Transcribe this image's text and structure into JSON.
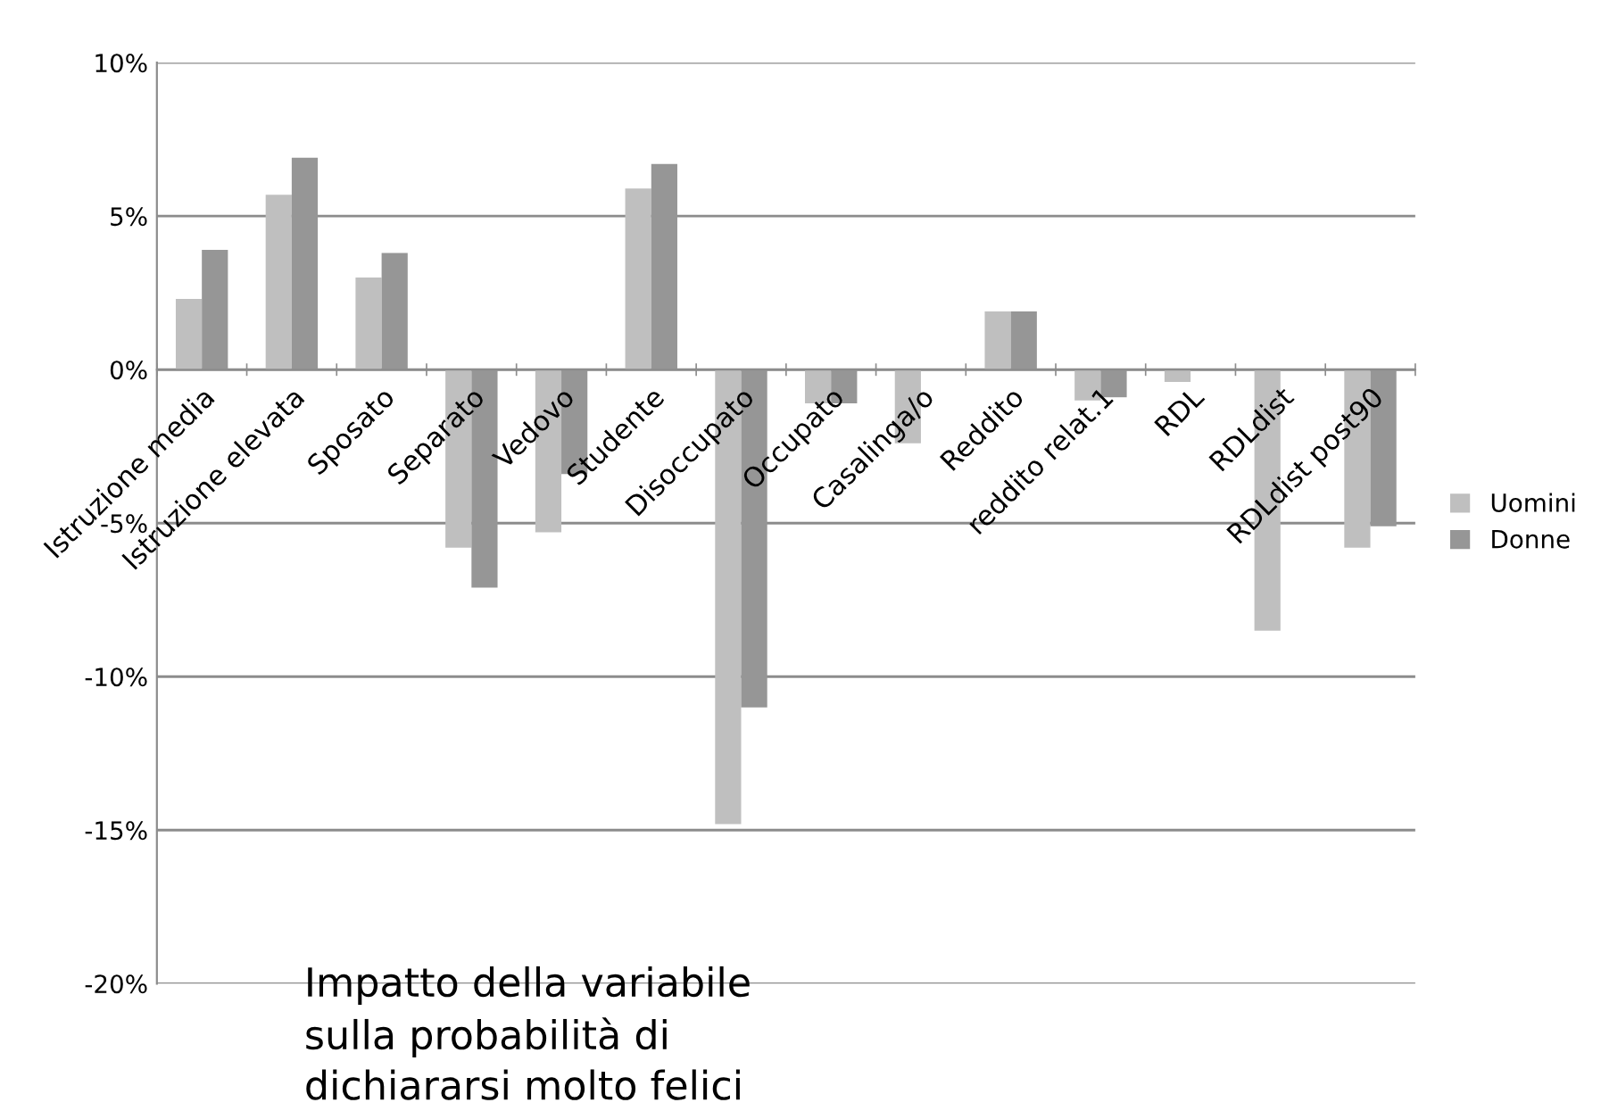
{
  "chart_data": {
    "type": "bar",
    "categories": [
      "Istruzione media",
      "Istruzione elevata",
      "Sposato",
      "Separato",
      "Vedovo",
      "Studente",
      "Disoccupato",
      "Occupato",
      "Casalinga/o",
      "Reddito",
      "reddito relat.1",
      "RDL",
      "RDLdist",
      "RDLdist post90"
    ],
    "series": [
      {
        "name": "Uomini",
        "color": "#bfbfbf",
        "values": [
          2.3,
          5.7,
          3.0,
          -5.8,
          -5.3,
          5.9,
          -14.8,
          -1.1,
          -2.4,
          1.9,
          -1.0,
          -0.4,
          -8.5,
          -5.8
        ]
      },
      {
        "name": "Donne",
        "color": "#969696",
        "values": [
          3.9,
          6.9,
          3.8,
          -7.1,
          -3.4,
          6.7,
          -11.0,
          -1.1,
          null,
          1.9,
          -0.9,
          null,
          null,
          -5.1
        ]
      }
    ],
    "ylim": [
      -20,
      10
    ],
    "yticks": [
      {
        "value": -20,
        "label": "-20%"
      },
      {
        "value": -15,
        "label": "-15%"
      },
      {
        "value": -10,
        "label": "-10%"
      },
      {
        "value": -5,
        "label": "-5%"
      },
      {
        "value": 0,
        "label": "0%"
      },
      {
        "value": 5,
        "label": "5%"
      },
      {
        "value": 10,
        "label": "10%"
      }
    ],
    "grid": "y",
    "legend": "right",
    "annotations": [
      "Impatto della variabile\nsulla probabilità di\ndichiararsi molto felici"
    ]
  }
}
